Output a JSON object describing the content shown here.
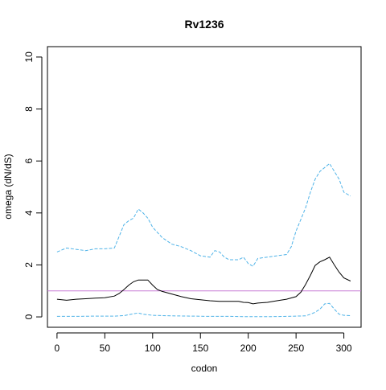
{
  "chart_data": {
    "type": "line",
    "title": "Rv1236",
    "xlabel": "codon",
    "ylabel": "omega (dN/dS)",
    "xlim": [
      -10,
      318
    ],
    "ylim": [
      -0.4,
      10.4
    ],
    "x_ticks": [
      0,
      50,
      100,
      150,
      200,
      250,
      300
    ],
    "y_ticks": [
      0,
      2,
      4,
      6,
      8,
      10
    ],
    "grid": false,
    "legend": "none",
    "reference_line": {
      "y": 1,
      "color": "#c77cd6"
    },
    "series": [
      {
        "role": "omega",
        "color": "#000000",
        "style": "solid",
        "x": [
          0,
          10,
          20,
          30,
          40,
          50,
          60,
          65,
          70,
          75,
          80,
          85,
          95,
          100,
          105,
          110,
          120,
          130,
          140,
          150,
          160,
          170,
          180,
          190,
          195,
          200,
          205,
          210,
          220,
          230,
          240,
          250,
          255,
          260,
          265,
          270,
          275,
          280,
          285,
          290,
          295,
          300,
          307
        ],
        "y": [
          0.68,
          0.64,
          0.68,
          0.7,
          0.72,
          0.74,
          0.8,
          0.9,
          1.05,
          1.22,
          1.35,
          1.42,
          1.42,
          1.22,
          1.05,
          0.98,
          0.88,
          0.78,
          0.7,
          0.66,
          0.62,
          0.6,
          0.6,
          0.6,
          0.56,
          0.55,
          0.5,
          0.53,
          0.56,
          0.62,
          0.68,
          0.78,
          0.95,
          1.25,
          1.6,
          1.98,
          2.12,
          2.2,
          2.3,
          2.0,
          1.72,
          1.5,
          1.38
        ]
      },
      {
        "role": "upper bound",
        "color": "#4fb3e8",
        "style": "dashed",
        "x": [
          0,
          10,
          20,
          30,
          40,
          50,
          60,
          65,
          70,
          75,
          80,
          85,
          90,
          95,
          100,
          110,
          120,
          130,
          140,
          150,
          160,
          165,
          170,
          175,
          180,
          190,
          195,
          200,
          205,
          210,
          220,
          230,
          240,
          245,
          250,
          255,
          260,
          265,
          270,
          275,
          280,
          285,
          290,
          295,
          300,
          307
        ],
        "y": [
          2.5,
          2.65,
          2.6,
          2.55,
          2.62,
          2.62,
          2.65,
          3.1,
          3.55,
          3.7,
          3.8,
          4.15,
          4.0,
          3.8,
          3.45,
          3.05,
          2.8,
          2.7,
          2.55,
          2.35,
          2.3,
          2.55,
          2.5,
          2.3,
          2.2,
          2.2,
          2.3,
          2.05,
          1.95,
          2.25,
          2.3,
          2.35,
          2.4,
          2.7,
          3.3,
          3.75,
          4.2,
          4.8,
          5.3,
          5.6,
          5.75,
          5.9,
          5.6,
          5.3,
          4.8,
          4.65
        ]
      },
      {
        "role": "lower bound",
        "color": "#4fb3e8",
        "style": "dashed",
        "x": [
          0,
          20,
          40,
          60,
          70,
          80,
          85,
          90,
          100,
          120,
          140,
          160,
          180,
          200,
          220,
          240,
          260,
          265,
          270,
          275,
          280,
          285,
          290,
          295,
          300,
          307
        ],
        "y": [
          0.02,
          0.02,
          0.03,
          0.03,
          0.05,
          0.12,
          0.15,
          0.1,
          0.06,
          0.04,
          0.03,
          0.02,
          0.02,
          0.01,
          0.01,
          0.02,
          0.04,
          0.1,
          0.18,
          0.3,
          0.5,
          0.52,
          0.3,
          0.1,
          0.06,
          0.05
        ]
      }
    ]
  }
}
